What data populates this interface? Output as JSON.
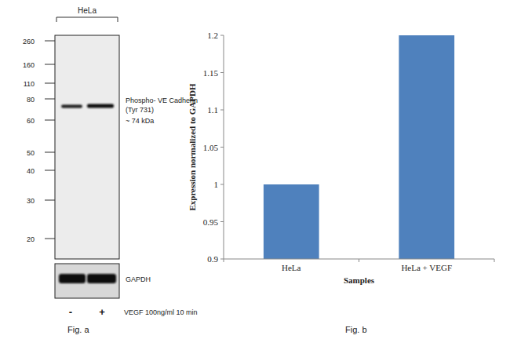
{
  "chart_data": {
    "type": "bar",
    "title": "Fig. b",
    "categories": [
      "HeLa",
      "HeLa + VEGF"
    ],
    "values": [
      1,
      1.2
    ],
    "color": "#4f81bd",
    "x_label": "Samples",
    "y_label": "Expression normalized to GAPDH",
    "ylim": [
      0.9,
      1.2
    ],
    "yticks": [
      0.9,
      0.95,
      1,
      1.05,
      1.1,
      1.15,
      1.2
    ],
    "grid": false
  },
  "blot": {
    "title": "Fig. a",
    "cell_line": "HeLa",
    "ladder": [
      260,
      160,
      110,
      80,
      60,
      50,
      40,
      30,
      20
    ],
    "band_label": "Phospho- VE Cadherin (Tyr 731)",
    "band_size": "~ 74 kDa",
    "loading_control": "GAPDH",
    "lanes": [
      "-",
      "+"
    ],
    "treatment": "VEGF 100ng/ml 10 min"
  }
}
